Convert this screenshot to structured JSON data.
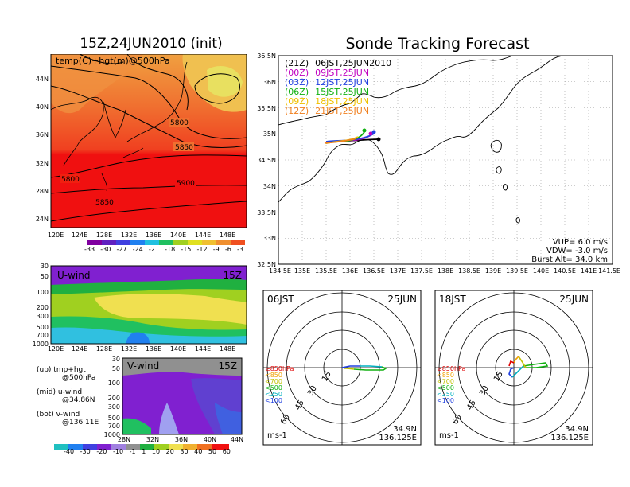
{
  "left": {
    "main_title": "15Z,24JUN2010 (init)",
    "map": {
      "label": "temp(C)+hgt(m)@500hPa",
      "lat_ticks": [
        "44N",
        "40N",
        "36N",
        "32N",
        "28N",
        "24N"
      ],
      "lon_ticks": [
        "120E",
        "124E",
        "128E",
        "132E",
        "136E",
        "140E",
        "144E",
        "148E"
      ],
      "contour_labels": [
        "5800",
        "5850",
        "5800",
        "5850",
        "5900"
      ]
    },
    "temp_colorbar": [
      "-33",
      "-30",
      "-27",
      "-24",
      "-21",
      "-18",
      "-15",
      "-12",
      "-9",
      "-6",
      "-3"
    ],
    "uwind": {
      "label": "U-wind",
      "time": "15Z",
      "p_ticks": [
        "30",
        "50",
        "100",
        "200",
        "300",
        "500",
        "700",
        "1000"
      ],
      "lon_ticks": [
        "120E",
        "124E",
        "128E",
        "132E",
        "136E",
        "140E",
        "144E",
        "148E"
      ]
    },
    "vwind": {
      "label": "V-wind",
      "time": "15Z",
      "p_ticks": [
        "30",
        "50",
        "100",
        "200",
        "300",
        "500",
        "700",
        "1000"
      ],
      "lat_ticks": [
        "28N",
        "32N",
        "36N",
        "40N",
        "44N"
      ]
    },
    "notes": [
      {
        "a": "(up) tmp+hgt",
        "b": "@500hPa"
      },
      {
        "a": "(mid) u-wind",
        "b": "@34.86N"
      },
      {
        "a": "(bot) v-wind",
        "b": "@136.11E"
      }
    ],
    "wind_colorbar": [
      "-40",
      "-30",
      "-20",
      "-10",
      "-1",
      "1",
      "10",
      "20",
      "30",
      "40",
      "50",
      "60"
    ]
  },
  "right": {
    "main_title": "Sonde Tracking Forecast",
    "track_map": {
      "lat_ticks": [
        "36.5N",
        "36N",
        "35.5N",
        "35N",
        "34.5N",
        "34N",
        "33.5N",
        "33N",
        "32.5N"
      ],
      "lon_ticks": [
        "134.5E",
        "135E",
        "135.5E",
        "136E",
        "136.5E",
        "137E",
        "137.5E",
        "138E",
        "138.5E",
        "139E",
        "139.5E",
        "140E",
        "140.5E",
        "141E",
        "141.5E"
      ],
      "legend": [
        {
          "run": "(21Z)",
          "time": "06JST,25JUN2010",
          "color": "#000000"
        },
        {
          "run": "(00Z)",
          "time": "09JST,25JUN",
          "color": "#c000c0"
        },
        {
          "run": "(03Z)",
          "time": "12JST,25JUN",
          "color": "#2040e0"
        },
        {
          "run": "(06Z)",
          "time": "15JST,25JUN",
          "color": "#10b010"
        },
        {
          "run": "(09Z)",
          "time": "18JST,25JUN",
          "color": "#f0c000"
        },
        {
          "run": "(12Z)",
          "time": "21JST,25JUN",
          "color": "#f08020"
        }
      ],
      "params": [
        "VUP= 6.0 m/s",
        "VDW= -3.0 m/s",
        "Burst Alt= 34.0 km"
      ]
    },
    "polars": [
      {
        "time": "06JST",
        "date": "25JUN",
        "unit": "ms-1",
        "lat": "34.9N",
        "lon": "136.125E"
      },
      {
        "time": "18JST",
        "date": "25JUN",
        "unit": "ms-1",
        "lat": "34.9N",
        "lon": "136.125E"
      }
    ],
    "ring_labels": [
      "15",
      "30",
      "45",
      "60"
    ],
    "levels": [
      {
        "label": "≥850hPa",
        "color": "#e00000"
      },
      {
        "label": "<850",
        "color": "#f0a000"
      },
      {
        "label": "<700",
        "color": "#c0c000"
      },
      {
        "label": "<500",
        "color": "#10b010"
      },
      {
        "label": "<250",
        "color": "#00b0c0"
      },
      {
        "label": "<100",
        "color": "#2040e0"
      }
    ]
  }
}
